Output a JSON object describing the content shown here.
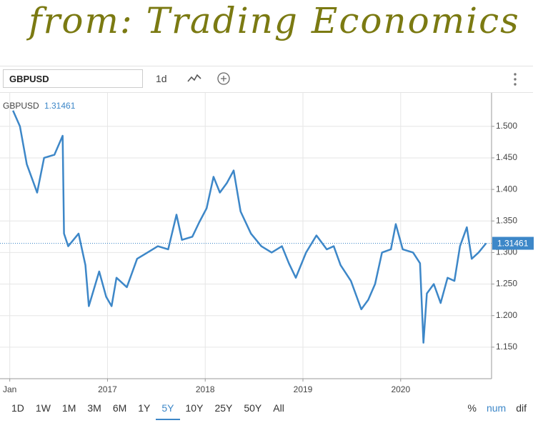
{
  "annotation": "from: Trading Economics",
  "toolbar": {
    "symbol": "GBPUSD",
    "interval": "1d"
  },
  "chart_data": {
    "type": "line",
    "x": [
      2016.033,
      2016.104,
      2016.174,
      2016.28,
      2016.351,
      2016.457,
      2016.541,
      2016.555,
      2016.598,
      2016.704,
      2016.774,
      2016.809,
      2016.915,
      2016.986,
      2017.042,
      2017.092,
      2017.198,
      2017.303,
      2017.409,
      2017.515,
      2017.621,
      2017.706,
      2017.762,
      2017.868,
      2017.939,
      2018.014,
      2018.085,
      2018.15,
      2018.221,
      2018.291,
      2018.362,
      2018.468,
      2018.574,
      2018.68,
      2018.785,
      2018.856,
      2018.927,
      2019.032,
      2019.138,
      2019.244,
      2019.315,
      2019.385,
      2019.491,
      2019.597,
      2019.668,
      2019.738,
      2019.809,
      2019.9,
      2019.95,
      2020.021,
      2020.127,
      2020.198,
      2020.233,
      2020.268,
      2020.339,
      2020.409,
      2020.48,
      2020.55,
      2020.607,
      2020.677,
      2020.727,
      2020.797,
      2020.874
    ],
    "series": [
      {
        "name": "GBPUSD",
        "color": "#3d87c8",
        "values": [
          1.525,
          1.5,
          1.44,
          1.395,
          1.45,
          1.455,
          1.485,
          1.33,
          1.31,
          1.33,
          1.28,
          1.215,
          1.27,
          1.23,
          1.215,
          1.26,
          1.245,
          1.29,
          1.3,
          1.31,
          1.305,
          1.36,
          1.32,
          1.325,
          1.348,
          1.37,
          1.42,
          1.395,
          1.41,
          1.43,
          1.365,
          1.33,
          1.31,
          1.3,
          1.31,
          1.283,
          1.26,
          1.3,
          1.327,
          1.305,
          1.31,
          1.28,
          1.255,
          1.21,
          1.225,
          1.25,
          1.3,
          1.305,
          1.345,
          1.305,
          1.3,
          1.283,
          1.157,
          1.235,
          1.25,
          1.22,
          1.26,
          1.255,
          1.31,
          1.34,
          1.29,
          1.3,
          1.31461
        ]
      }
    ],
    "last_value": 1.31461,
    "xlim": [
      2015.9,
      2020.93
    ],
    "xticks": [
      {
        "value": 2016,
        "label": "Jan"
      },
      2017,
      2018,
      2019,
      2020
    ],
    "ylim": [
      1.1,
      1.553
    ],
    "yticks": [
      {
        "value": 1.15,
        "label": "1.150"
      },
      {
        "value": 1.2,
        "label": "1.200"
      },
      {
        "value": 1.25,
        "label": "1.250"
      },
      {
        "value": 1.3,
        "label": "1.300"
      },
      {
        "value": 1.35,
        "label": "1.350"
      },
      {
        "value": 1.4,
        "label": "1.400"
      },
      {
        "value": 1.45,
        "label": "1.450"
      },
      {
        "value": 1.5,
        "label": "1.500"
      }
    ],
    "grid": true
  },
  "range_buttons": [
    "1D",
    "1W",
    "1M",
    "3M",
    "6M",
    "1Y",
    "5Y",
    "10Y",
    "25Y",
    "50Y",
    "All"
  ],
  "mode_buttons": [
    "%",
    "num",
    "dif"
  ]
}
